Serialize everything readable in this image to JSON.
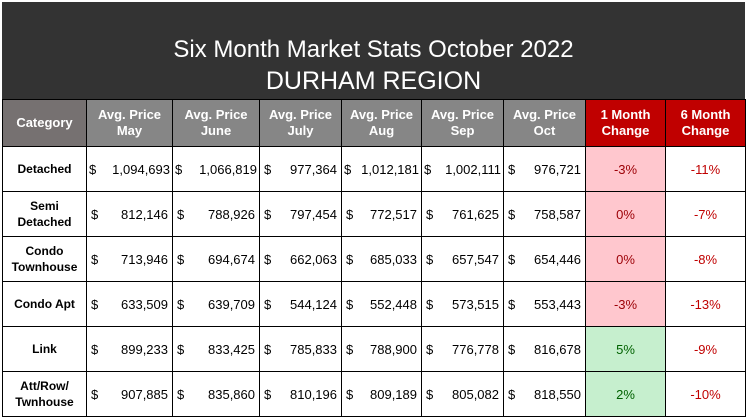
{
  "title": "Six Month Market Stats October 2022",
  "subtitle": "DURHAM REGION",
  "headers": [
    "Category",
    "Avg. Price May",
    "Avg. Price June",
    "Avg. Price July",
    "Avg. Price Aug",
    "Avg. Price Sep",
    "Avg. Price Oct",
    "1 Month Change",
    "6 Month Change"
  ],
  "header_lines": [
    [
      "Category"
    ],
    [
      "Avg. Price",
      "May"
    ],
    [
      "Avg. Price",
      "June"
    ],
    [
      "Avg. Price",
      "July"
    ],
    [
      "Avg. Price",
      "Aug"
    ],
    [
      "Avg. Price",
      "Sep"
    ],
    [
      "Avg. Price",
      "Oct"
    ],
    [
      "1 Month",
      "Change"
    ],
    [
      "6 Month",
      "Change"
    ]
  ],
  "currency_symbol": "$",
  "rows": [
    {
      "category": [
        "Detached"
      ],
      "prices": [
        "1,094,693",
        "1,066,819",
        "977,364",
        "1,012,181",
        "1,002,111",
        "976,721"
      ],
      "one_month_change": "-3%",
      "one_month_status": "negative",
      "six_month_change": "-11%"
    },
    {
      "category": [
        "Semi",
        "Detached"
      ],
      "prices": [
        "812,146",
        "788,926",
        "797,454",
        "772,517",
        "761,625",
        "758,587"
      ],
      "one_month_change": "0%",
      "one_month_status": "negative",
      "six_month_change": "-7%"
    },
    {
      "category": [
        "Condo",
        "Townhouse"
      ],
      "prices": [
        "713,946",
        "694,674",
        "662,063",
        "685,033",
        "657,547",
        "654,446"
      ],
      "one_month_change": "0%",
      "one_month_status": "negative",
      "six_month_change": "-8%"
    },
    {
      "category": [
        "Condo Apt"
      ],
      "prices": [
        "633,509",
        "639,709",
        "544,124",
        "552,448",
        "573,515",
        "553,443"
      ],
      "one_month_change": "-3%",
      "one_month_status": "negative",
      "six_month_change": "-13%"
    },
    {
      "category": [
        "Link"
      ],
      "prices": [
        "899,233",
        "833,425",
        "785,833",
        "788,900",
        "776,778",
        "816,678"
      ],
      "one_month_change": "5%",
      "one_month_status": "positive",
      "six_month_change": "-9%"
    },
    {
      "category": [
        "Att/Row/",
        "Twnhouse"
      ],
      "prices": [
        "907,885",
        "835,860",
        "810,196",
        "809,189",
        "805,082",
        "818,550"
      ],
      "one_month_change": "2%",
      "one_month_status": "positive",
      "six_month_change": "-10%"
    }
  ],
  "colors": {
    "banner_bg": "#333333",
    "header_bg": "#868686",
    "category_header_bg": "#767171",
    "change_header_bg": "#c00000",
    "negative_fill": "#ffc7ce",
    "negative_text": "#9c0006",
    "positive_fill": "#c6efce",
    "positive_text": "#006100",
    "six_month_text": "#c00000"
  }
}
